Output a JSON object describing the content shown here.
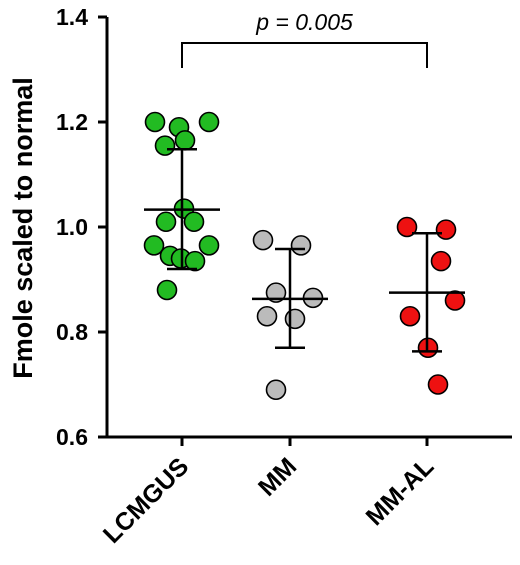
{
  "chart_data": {
    "type": "scatter",
    "title": "",
    "xlabel": "",
    "ylabel": "Fmole scaled to normal",
    "ylim": [
      0.6,
      1.4
    ],
    "yticks": [
      "0.6",
      "0.8",
      "1.0",
      "1.2",
      "1.4"
    ],
    "grid": false,
    "categories": [
      "LCMGUS",
      "MM",
      "MM-AL"
    ],
    "groups": [
      {
        "category": "LCMGUS",
        "color": "#22bb22",
        "points": [
          1.2,
          1.19,
          1.2,
          1.155,
          1.165,
          1.035,
          1.01,
          1.01,
          0.965,
          0.965,
          0.945,
          0.94,
          0.935,
          0.88
        ],
        "mean": 1.033,
        "sd_low": 0.92,
        "sd_high": 1.148
      },
      {
        "category": "MM",
        "color": "#bbbbbb",
        "points": [
          0.975,
          0.965,
          0.875,
          0.865,
          0.83,
          0.825,
          0.69
        ],
        "mean": 0.863,
        "sd_low": 0.77,
        "sd_high": 0.958
      },
      {
        "category": "MM-AL",
        "color": "#ee1111",
        "points": [
          1.0,
          0.995,
          0.935,
          0.86,
          0.83,
          0.77,
          0.7
        ],
        "mean": 0.875,
        "sd_low": 0.763,
        "sd_high": 0.988
      }
    ],
    "annotation": {
      "text": "p = 0.005",
      "from": "LCMGUS",
      "to": "MM-AL"
    }
  }
}
